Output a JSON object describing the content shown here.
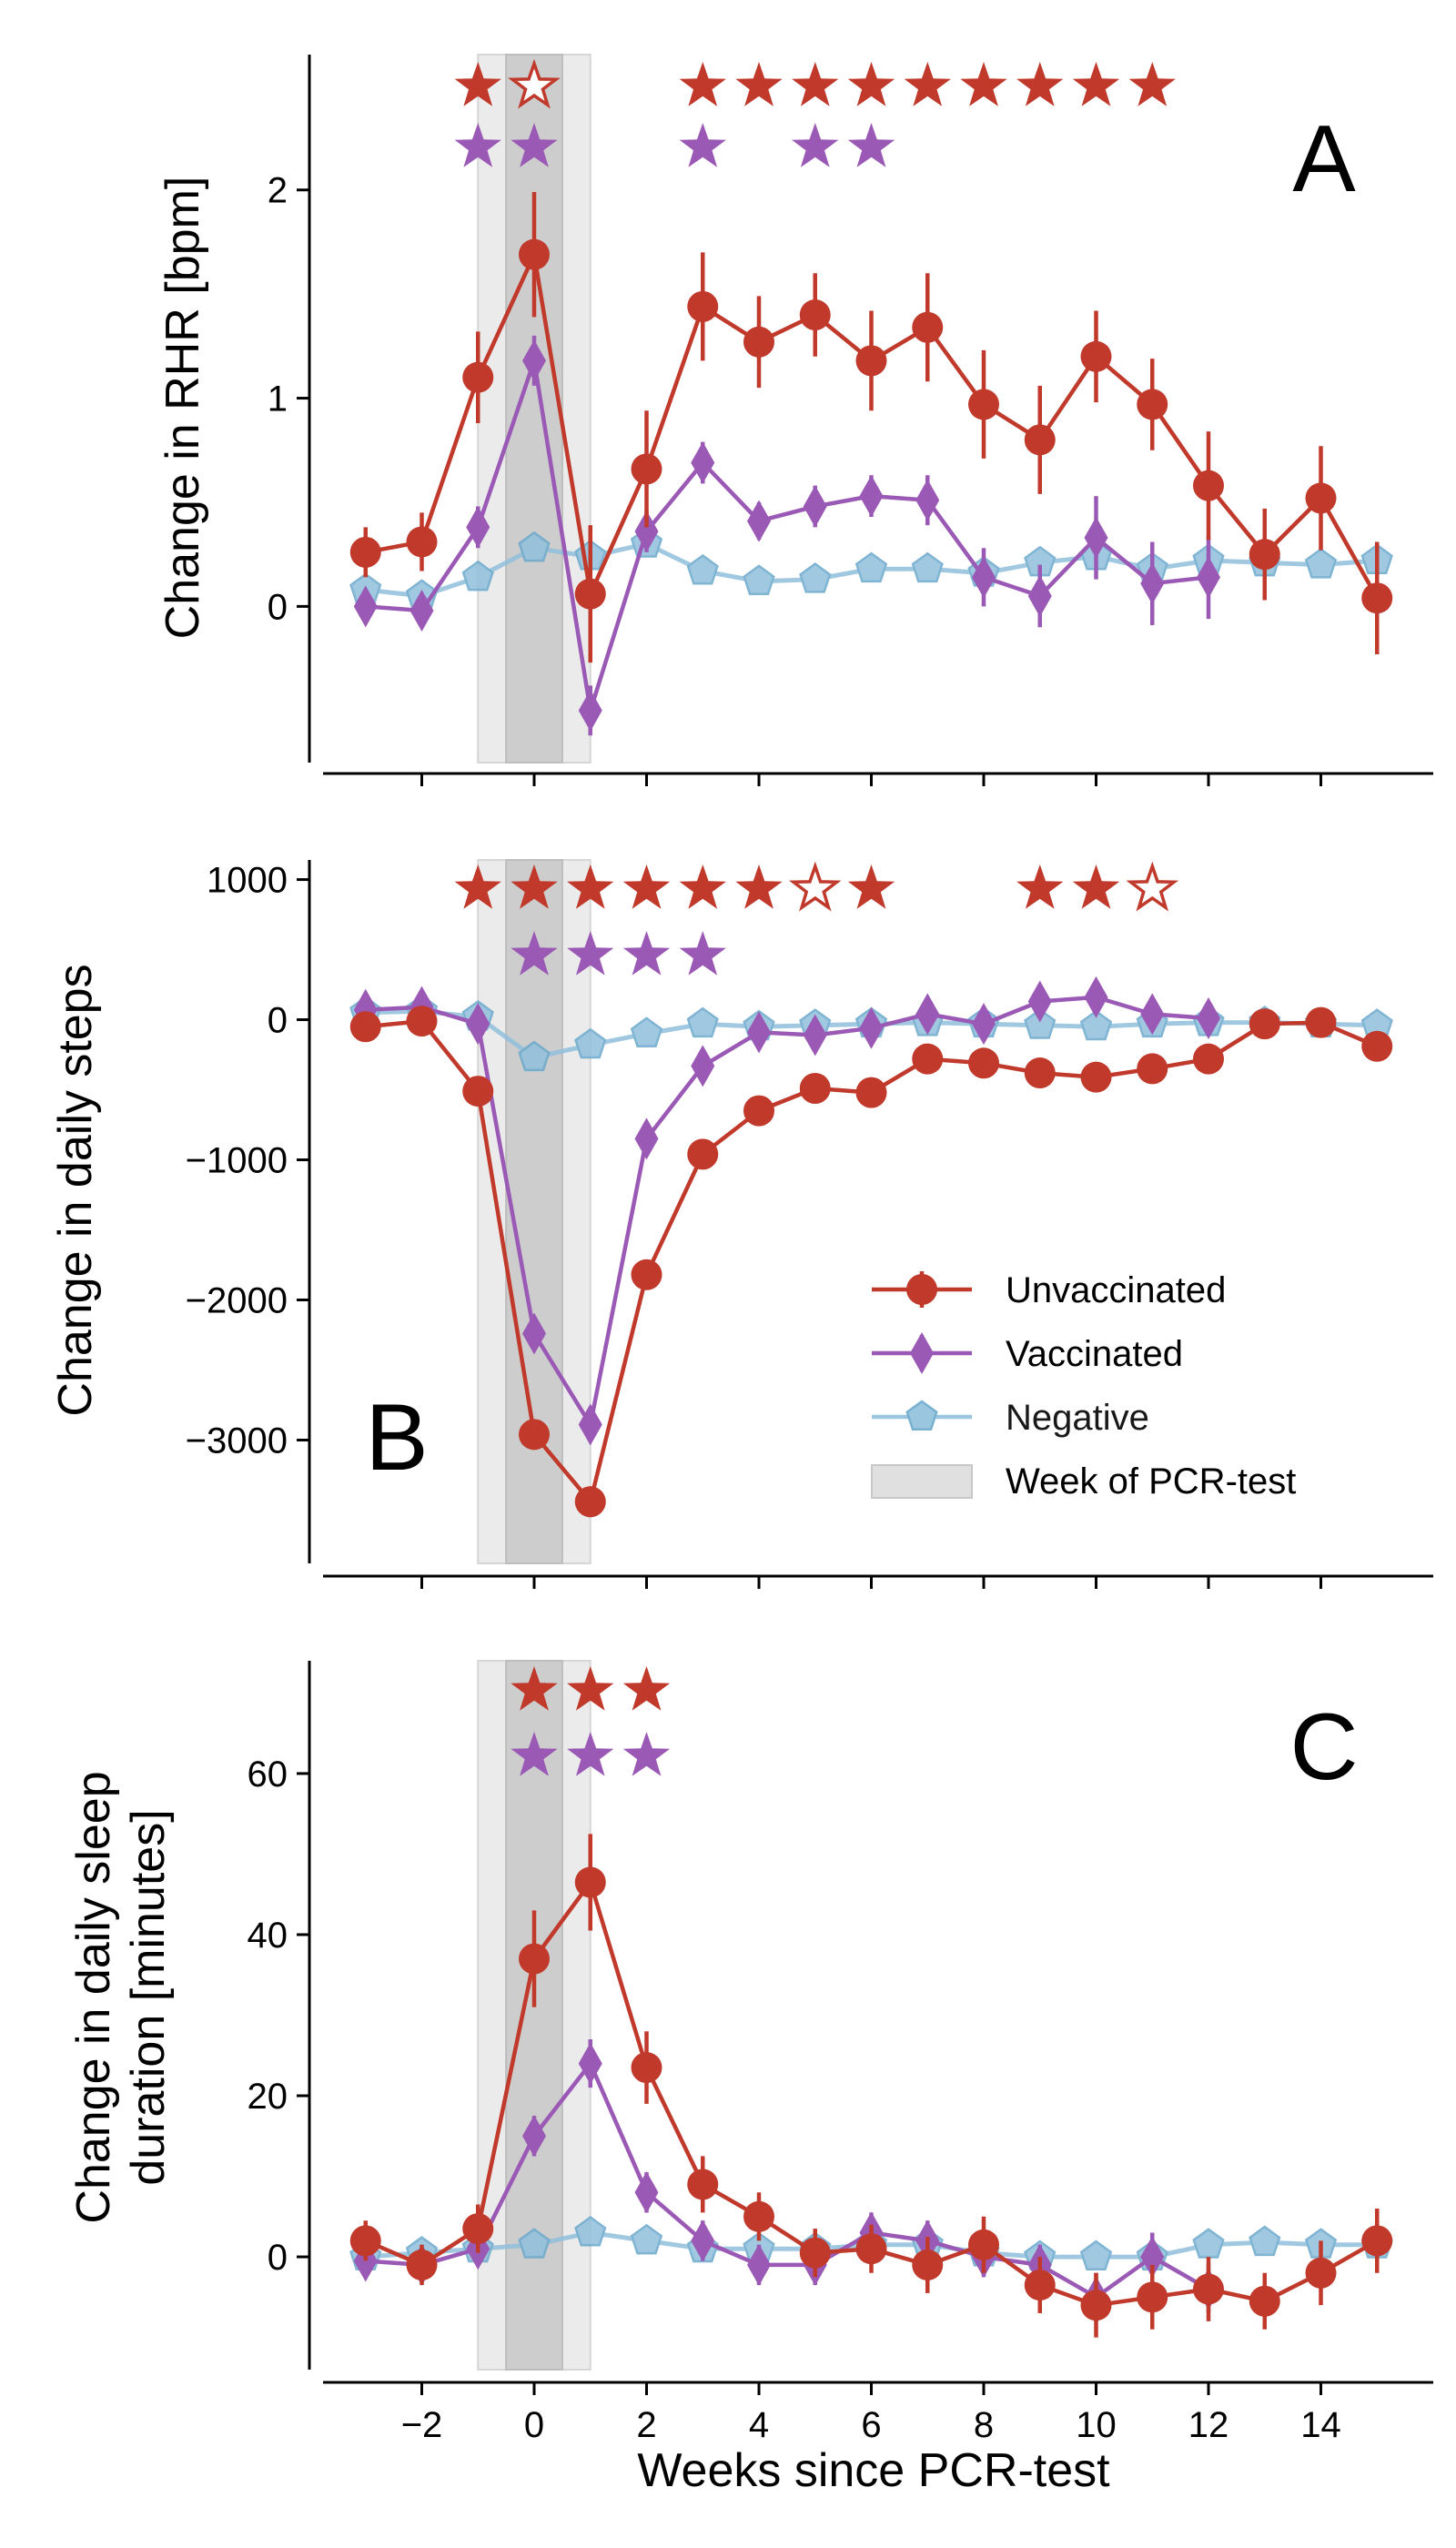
{
  "colors": {
    "unvaccinated": "#c0392b",
    "vaccinated": "#9b59b6",
    "negative": "#90c0dc",
    "negative_edge": "#6aa8cc",
    "shade_outer": "#ebebeb",
    "shade_inner": "#cdcdcd"
  },
  "chart_data": [
    {
      "type": "line",
      "panel": "A",
      "ylabel": "Change in RHR [bpm]",
      "xlim": [
        -4,
        16
      ],
      "ylim": [
        -0.75,
        2.65
      ],
      "yticks": [
        0,
        1,
        2
      ],
      "ytick_labels": [
        "0",
        "1",
        "2"
      ],
      "shaded_weeks": {
        "outer": [
          -1,
          1
        ],
        "inner": [
          -0.5,
          0.5
        ]
      },
      "series": [
        {
          "name": "Unvaccinated",
          "marker": "circle",
          "x": [
            -3,
            -2,
            -1,
            0,
            1,
            2,
            3,
            4,
            5,
            6,
            7,
            8,
            9,
            10,
            11,
            12,
            13,
            14,
            15
          ],
          "y": [
            0.26,
            0.31,
            1.1,
            1.69,
            0.06,
            0.66,
            1.44,
            1.27,
            1.4,
            1.18,
            1.34,
            0.97,
            0.8,
            1.2,
            0.97,
            0.58,
            0.25,
            0.52,
            0.04
          ],
          "err": [
            0.12,
            0.14,
            0.22,
            0.3,
            0.33,
            0.28,
            0.26,
            0.22,
            0.2,
            0.24,
            0.26,
            0.26,
            0.26,
            0.22,
            0.22,
            0.26,
            0.22,
            0.25,
            0.27
          ]
        },
        {
          "name": "Vaccinated",
          "marker": "diamond",
          "x": [
            -3,
            -2,
            -1,
            0,
            1,
            2,
            3,
            4,
            5,
            6,
            7,
            8,
            9,
            10,
            11,
            12
          ],
          "y": [
            0.0,
            -0.02,
            0.38,
            1.18,
            -0.5,
            0.36,
            0.69,
            0.41,
            0.48,
            0.53,
            0.51,
            0.14,
            0.05,
            0.33,
            0.11,
            0.14
          ],
          "err": [
            0.08,
            0.08,
            0.1,
            0.12,
            0.12,
            0.1,
            0.1,
            0.09,
            0.1,
            0.1,
            0.12,
            0.14,
            0.15,
            0.2,
            0.2,
            0.2
          ]
        },
        {
          "name": "Negative",
          "marker": "pentagon",
          "x": [
            -3,
            -2,
            -1,
            0,
            1,
            2,
            3,
            4,
            5,
            6,
            7,
            8,
            9,
            10,
            11,
            12,
            13,
            14,
            15
          ],
          "y": [
            0.08,
            0.05,
            0.14,
            0.28,
            0.24,
            0.3,
            0.17,
            0.12,
            0.13,
            0.18,
            0.18,
            0.16,
            0.21,
            0.24,
            0.18,
            0.22,
            0.21,
            0.2,
            0.22
          ],
          "err": [
            0.03,
            0.03,
            0.03,
            0.03,
            0.03,
            0.03,
            0.03,
            0.03,
            0.03,
            0.03,
            0.03,
            0.03,
            0.03,
            0.03,
            0.03,
            0.03,
            0.03,
            0.03,
            0.03
          ]
        }
      ],
      "stars": [
        {
          "series": "Unvaccinated",
          "row": 1,
          "filled": [
            -1,
            3,
            4,
            5,
            6,
            7,
            8,
            9,
            10,
            11
          ],
          "open": [
            0
          ]
        },
        {
          "series": "Vaccinated",
          "row": 2,
          "filled": [
            -1,
            0,
            3,
            5,
            6
          ],
          "open": []
        }
      ]
    },
    {
      "type": "line",
      "panel": "B",
      "ylabel": "Change in daily steps",
      "xlim": [
        -4,
        16
      ],
      "ylim": [
        -3880,
        1140
      ],
      "yticks": [
        -3000,
        -2000,
        -1000,
        0,
        1000
      ],
      "ytick_labels": [
        "−3000",
        "−2000",
        "−1000",
        "0",
        "1000"
      ],
      "shaded_weeks": {
        "outer": [
          -1,
          1
        ],
        "inner": [
          -0.5,
          0.5
        ]
      },
      "series": [
        {
          "name": "Unvaccinated",
          "marker": "circle",
          "x": [
            -3,
            -2,
            -1,
            0,
            1,
            2,
            3,
            4,
            5,
            6,
            7,
            8,
            9,
            10,
            11,
            12,
            13,
            14,
            15
          ],
          "y": [
            -50,
            -10,
            -510,
            -2960,
            -3440,
            -1820,
            -960,
            -650,
            -490,
            -520,
            -280,
            -310,
            -380,
            -410,
            -350,
            -280,
            -30,
            -20,
            -190
          ],
          "err": [
            40,
            40,
            60,
            100,
            110,
            90,
            70,
            60,
            60,
            60,
            60,
            60,
            60,
            60,
            60,
            60,
            60,
            70,
            70
          ]
        },
        {
          "name": "Vaccinated",
          "marker": "diamond",
          "x": [
            -3,
            -2,
            -1,
            0,
            1,
            2,
            3,
            4,
            5,
            6,
            7,
            8,
            9,
            10,
            11,
            12
          ],
          "y": [
            70,
            90,
            -30,
            -2240,
            -2890,
            -850,
            -330,
            -90,
            -110,
            -60,
            40,
            -30,
            130,
            160,
            40,
            10
          ],
          "err": [
            30,
            30,
            40,
            80,
            90,
            60,
            50,
            40,
            40,
            40,
            40,
            40,
            40,
            50,
            50,
            50
          ]
        },
        {
          "name": "Negative",
          "marker": "pentagon",
          "x": [
            -3,
            -2,
            -1,
            0,
            1,
            2,
            3,
            4,
            5,
            6,
            7,
            8,
            9,
            10,
            11,
            12,
            13,
            14,
            15
          ],
          "y": [
            50,
            60,
            20,
            -270,
            -180,
            -100,
            -30,
            -50,
            -40,
            -30,
            -20,
            -30,
            -40,
            -50,
            -30,
            -20,
            -20,
            -30,
            -40
          ],
          "err": [
            15,
            15,
            15,
            20,
            20,
            15,
            15,
            15,
            15,
            15,
            15,
            15,
            15,
            15,
            15,
            15,
            15,
            15,
            15
          ]
        }
      ],
      "stars": [
        {
          "series": "Unvaccinated",
          "row": 1,
          "filled": [
            -1,
            0,
            1,
            2,
            3,
            4,
            6,
            9,
            10
          ],
          "open": [
            5,
            11
          ]
        },
        {
          "series": "Vaccinated",
          "row": 2,
          "filled": [
            0,
            1,
            2,
            3
          ],
          "open": []
        }
      ],
      "legend": {
        "position": "lower right",
        "entries": [
          "Unvaccinated",
          "Vaccinated",
          "Negative",
          "Week of PCR-test"
        ]
      }
    },
    {
      "type": "line",
      "panel": "C",
      "ylabel": "Change in daily sleep",
      "ylabel_line2": "duration [minutes]",
      "xlabel": "Weeks since PCR-test",
      "xlim": [
        -4,
        16
      ],
      "ylim": [
        -14,
        74
      ],
      "yticks": [
        0,
        20,
        40,
        60
      ],
      "ytick_labels": [
        "0",
        "20",
        "40",
        "60"
      ],
      "xticks": [
        -2,
        0,
        2,
        4,
        6,
        8,
        10,
        12,
        14
      ],
      "xtick_labels": [
        "−2",
        "0",
        "2",
        "4",
        "6",
        "8",
        "10",
        "12",
        "14"
      ],
      "shaded_weeks": {
        "outer": [
          -1,
          1
        ],
        "inner": [
          -0.5,
          0.5
        ]
      },
      "series": [
        {
          "name": "Unvaccinated",
          "marker": "circle",
          "x": [
            -3,
            -2,
            -1,
            0,
            1,
            2,
            3,
            4,
            5,
            6,
            7,
            8,
            9,
            10,
            11,
            12,
            13,
            14,
            15
          ],
          "y": [
            2,
            -1,
            3.5,
            37,
            46.5,
            23.5,
            9,
            5,
            0.5,
            1,
            -1,
            1.5,
            -3.5,
            -6,
            -5,
            -4,
            -5.5,
            -2,
            2
          ],
          "err": [
            2.5,
            2.5,
            3,
            6,
            6,
            4.5,
            3.5,
            3,
            3,
            3,
            3.5,
            3.5,
            3.5,
            4,
            4,
            4,
            3.5,
            4,
            4
          ]
        },
        {
          "name": "Vaccinated",
          "marker": "diamond",
          "x": [
            -3,
            -2,
            -1,
            0,
            1,
            2,
            3,
            4,
            5,
            6,
            7,
            8,
            9,
            10,
            11,
            12
          ],
          "y": [
            -0.5,
            -1,
            1,
            15,
            24,
            8,
            2,
            -1,
            -1,
            3,
            2,
            0,
            -1,
            -5,
            0,
            -4
          ],
          "err": [
            2,
            2,
            2,
            2.5,
            3,
            2.5,
            2.5,
            2.5,
            2.5,
            2.5,
            2.5,
            2.5,
            2.5,
            3,
            3,
            3
          ]
        },
        {
          "name": "Negative",
          "marker": "pentagon",
          "x": [
            -3,
            -2,
            -1,
            0,
            1,
            2,
            3,
            4,
            5,
            6,
            7,
            8,
            9,
            10,
            11,
            12,
            13,
            14,
            15
          ],
          "y": [
            0,
            0.5,
            1,
            1.5,
            3,
            2,
            1,
            1,
            1,
            1.5,
            1.5,
            0.5,
            0,
            0,
            0,
            1.5,
            1.8,
            1.5,
            1.5
          ],
          "err": [
            0.5,
            0.5,
            0.5,
            0.5,
            0.5,
            0.5,
            0.5,
            0.5,
            0.5,
            0.5,
            0.5,
            0.5,
            0.5,
            0.5,
            0.5,
            0.5,
            0.5,
            0.5,
            0.5
          ]
        }
      ],
      "stars": [
        {
          "series": "Unvaccinated",
          "row": 1,
          "filled": [
            0,
            1,
            2
          ],
          "open": []
        },
        {
          "series": "Vaccinated",
          "row": 2,
          "filled": [
            0,
            1,
            2
          ],
          "open": []
        }
      ]
    }
  ]
}
